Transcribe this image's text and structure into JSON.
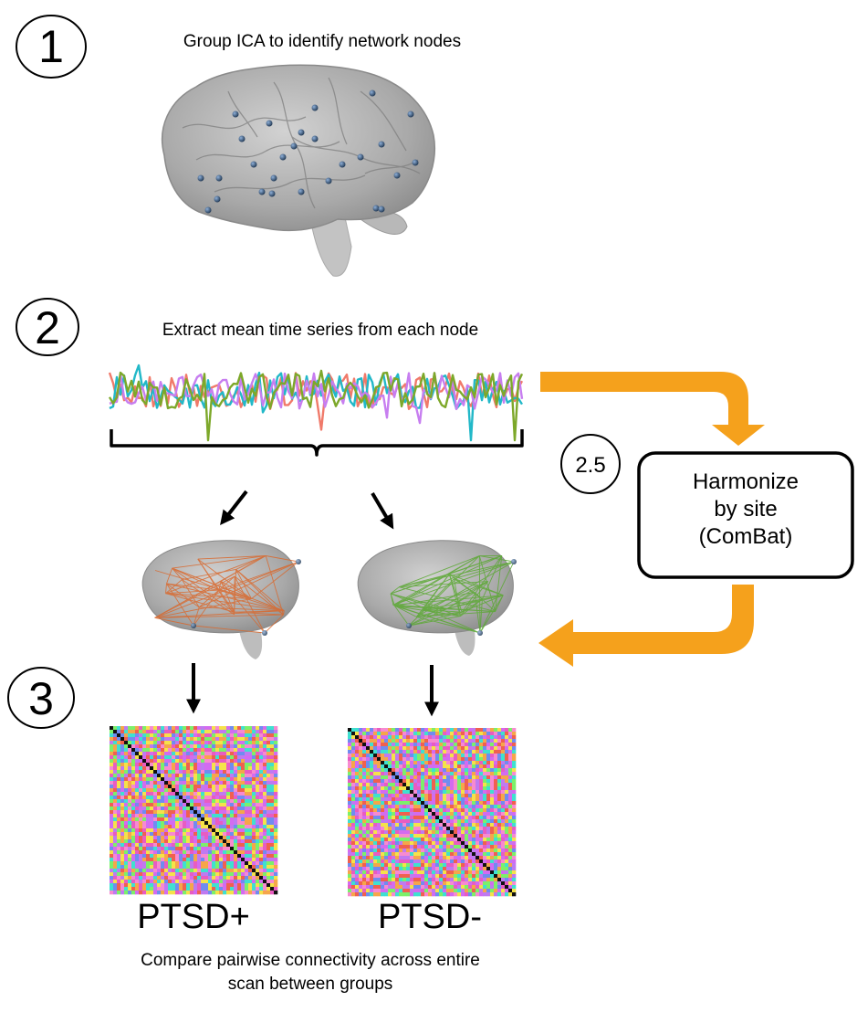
{
  "steps": {
    "one": "1",
    "two": "2",
    "two_five": "2.5",
    "three": "3"
  },
  "step1_caption": "Group ICA to identify network nodes",
  "step2_caption": "Extract mean time series from each node",
  "harmonize": {
    "line1": "Harmonize",
    "line2": "by site",
    "line3": "(ComBat)"
  },
  "groups": {
    "left": "PTSD+",
    "right": "PTSD-"
  },
  "compare": {
    "line1": "Compare pairwise connectivity across entire",
    "line2": "scan between groups"
  },
  "colors": {
    "orange_arrow": "#f5a11c",
    "ptsd_pos_edges": "#d9692e",
    "ptsd_neg_edges": "#5aa832",
    "series": [
      "#f07a6a",
      "#22b8c8",
      "#c77ef0",
      "#7da82a"
    ]
  }
}
